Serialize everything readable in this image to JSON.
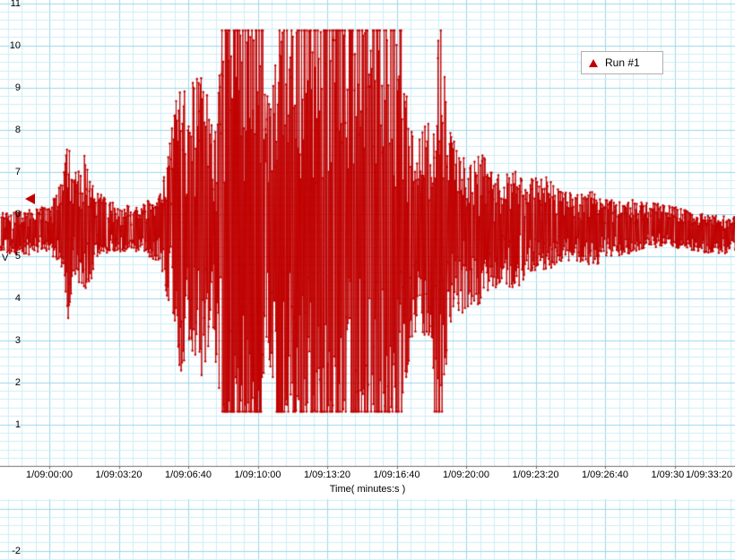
{
  "legend": {
    "label": "Run #1",
    "marker": "triangle-icon",
    "marker_color": "#c00000"
  },
  "axes": {
    "x": {
      "title": "Time( minutes:s )"
    },
    "y": {
      "title": "V"
    }
  },
  "colors": {
    "signal": "#c00000",
    "grid_minor": "#cdeef7",
    "grid_major": "#9bd7ea",
    "axis_line": "#6f6f6f",
    "legend_border": "#b0b0b0",
    "background": "#ffffff"
  },
  "chart_data": {
    "type": "line",
    "title": "",
    "series": [
      {
        "name": "Run #1",
        "color": "#c00000",
        "marker": "dot"
      }
    ],
    "xlabel": "Time( minutes:s )",
    "ylabel": "V",
    "x_unit": "seconds relative to 1/09:00:00",
    "x_range_s": [
      -140,
      1975
    ],
    "x_ticks": [
      {
        "t": 0,
        "label": "1/09:00:00"
      },
      {
        "t": 200,
        "label": "1/09:03:20"
      },
      {
        "t": 400,
        "label": "1/09:06:40"
      },
      {
        "t": 600,
        "label": "1/09:10:00"
      },
      {
        "t": 800,
        "label": "1/09:13:20"
      },
      {
        "t": 1000,
        "label": "1/09:16:40"
      },
      {
        "t": 1200,
        "label": "1/09:20:00"
      },
      {
        "t": 1400,
        "label": "1/09:23:20"
      },
      {
        "t": 1600,
        "label": "1/09:26:40"
      },
      {
        "t": 1800,
        "label": "1/09:30:00"
      },
      {
        "t": 2000,
        "label": "1/09:33:20"
      }
    ],
    "y_axis": {
      "visible_tick_values": [
        11,
        10,
        9,
        8,
        7,
        6,
        5,
        4,
        3,
        2,
        1,
        -2
      ],
      "major_step": 1
    },
    "grid": {
      "on": true,
      "minor_x_s": 40,
      "major_x_s": 200,
      "minor_y_v": 0.2,
      "major_y_v": 1
    },
    "baseline_v": 5.6,
    "clip_v": [
      1.3,
      10.35
    ],
    "channel_marker_v": 6.35,
    "sample_interval_s": 1.2,
    "noise_seed": 42,
    "amplitude_envelope": [
      [
        -140,
        0.5
      ],
      [
        0,
        0.55
      ],
      [
        40,
        1.1
      ],
      [
        55,
        2.3
      ],
      [
        70,
        1.2
      ],
      [
        110,
        1.8
      ],
      [
        130,
        0.9
      ],
      [
        170,
        0.6
      ],
      [
        250,
        0.55
      ],
      [
        320,
        0.8
      ],
      [
        350,
        2.2
      ],
      [
        375,
        3.6
      ],
      [
        400,
        3.0
      ],
      [
        430,
        3.9
      ],
      [
        470,
        2.6
      ],
      [
        500,
        4.6
      ],
      [
        530,
        5.0
      ],
      [
        600,
        5.0
      ],
      [
        640,
        3.2
      ],
      [
        660,
        4.8
      ],
      [
        700,
        5.0
      ],
      [
        800,
        5.0
      ],
      [
        900,
        5.0
      ],
      [
        960,
        4.6
      ],
      [
        1000,
        5.0
      ],
      [
        1015,
        4.2
      ],
      [
        1032,
        3.2
      ],
      [
        1060,
        2.4
      ],
      [
        1095,
        2.8
      ],
      [
        1110,
        5.0
      ],
      [
        1130,
        4.6
      ],
      [
        1150,
        2.6
      ],
      [
        1180,
        2.0
      ],
      [
        1215,
        1.7
      ],
      [
        1245,
        1.9
      ],
      [
        1275,
        1.4
      ],
      [
        1305,
        1.3
      ],
      [
        1345,
        1.5
      ],
      [
        1385,
        1.1
      ],
      [
        1425,
        1.2
      ],
      [
        1465,
        0.9
      ],
      [
        1525,
        0.8
      ],
      [
        1565,
        0.9
      ],
      [
        1605,
        0.7
      ],
      [
        1665,
        0.65
      ],
      [
        1725,
        0.55
      ],
      [
        1785,
        0.5
      ],
      [
        1850,
        0.45
      ],
      [
        1975,
        0.45
      ]
    ],
    "legend_position": "top-right"
  }
}
